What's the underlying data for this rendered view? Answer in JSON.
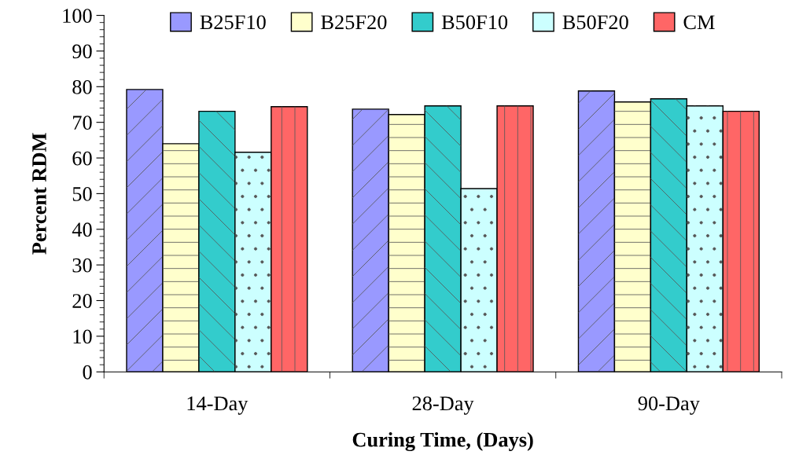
{
  "chart_data": {
    "type": "bar",
    "xlabel": "Curing Time, (Days)",
    "ylabel": "Percent RDM",
    "categories": [
      "14-Day",
      "28-Day",
      "90-Day"
    ],
    "series": [
      {
        "name": "B25F10",
        "color": "#9999ff",
        "values": [
          79.2,
          73.7,
          78.8
        ]
      },
      {
        "name": "B25F20",
        "color": "#ffffcc",
        "values": [
          64.0,
          72.2,
          75.7
        ]
      },
      {
        "name": "B50F10",
        "color": "#33cccc",
        "values": [
          73.1,
          74.6,
          76.6
        ]
      },
      {
        "name": "B50F20",
        "color": "#ccffff",
        "values": [
          61.6,
          51.4,
          74.6
        ]
      },
      {
        "name": "CM",
        "color": "#ff6666",
        "values": [
          74.4,
          74.6,
          73.1
        ]
      }
    ],
    "ylim": [
      0,
      100
    ],
    "yticks": [
      0,
      10,
      20,
      30,
      40,
      50,
      60,
      70,
      80,
      90,
      100
    ],
    "grid": false,
    "legend": "top"
  }
}
